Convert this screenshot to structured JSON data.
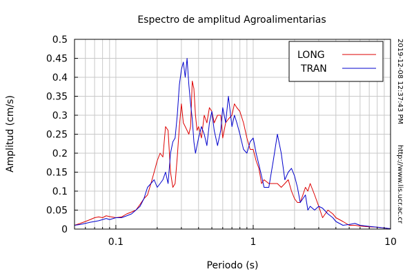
{
  "chart_data": {
    "type": "line",
    "title": "Espectro de amplitud Agroalimentarias",
    "xlabel": "Periodo (s)",
    "ylabel": "Amplitud (cm/s)",
    "x_scale": "log",
    "xlim": [
      0.05,
      10
    ],
    "ylim": [
      0,
      0.5
    ],
    "x_tick_labels": [
      {
        "value": 0.1,
        "label": "0.1"
      },
      {
        "value": 1,
        "label": "1"
      },
      {
        "value": 10,
        "label": "10"
      }
    ],
    "y_tick_labels": [
      "0",
      "0.05",
      "0.1",
      "0.15",
      "0.2",
      "0.25",
      "0.3",
      "0.35",
      "0.4",
      "0.45",
      "0.5"
    ],
    "y_ticks": [
      0,
      0.05,
      0.1,
      0.15,
      0.2,
      0.25,
      0.3,
      0.35,
      0.4,
      0.45,
      0.5
    ],
    "grid": true,
    "legend_position": "top-right",
    "series": [
      {
        "name": "LONG",
        "color": "#dd0000",
        "x": [
          0.05,
          0.055,
          0.06,
          0.065,
          0.07,
          0.075,
          0.08,
          0.085,
          0.09,
          0.1,
          0.11,
          0.12,
          0.13,
          0.14,
          0.15,
          0.16,
          0.17,
          0.18,
          0.19,
          0.2,
          0.21,
          0.22,
          0.23,
          0.24,
          0.25,
          0.26,
          0.27,
          0.28,
          0.29,
          0.3,
          0.31,
          0.32,
          0.33,
          0.34,
          0.35,
          0.36,
          0.37,
          0.38,
          0.39,
          0.4,
          0.42,
          0.44,
          0.46,
          0.48,
          0.5,
          0.52,
          0.55,
          0.58,
          0.6,
          0.63,
          0.66,
          0.7,
          0.73,
          0.76,
          0.8,
          0.85,
          0.9,
          0.95,
          1.0,
          1.05,
          1.1,
          1.15,
          1.2,
          1.3,
          1.4,
          1.5,
          1.6,
          1.7,
          1.8,
          1.9,
          2.0,
          2.1,
          2.2,
          2.3,
          2.4,
          2.5,
          2.6,
          2.8,
          3.0,
          3.2,
          3.5,
          3.8,
          4.0,
          4.5,
          5.0,
          5.5,
          6.0,
          7.0,
          8.0,
          9.0,
          10.0
        ],
        "y": [
          0.01,
          0.015,
          0.02,
          0.025,
          0.03,
          0.032,
          0.03,
          0.035,
          0.033,
          0.03,
          0.032,
          0.04,
          0.045,
          0.05,
          0.065,
          0.08,
          0.09,
          0.12,
          0.15,
          0.18,
          0.2,
          0.19,
          0.27,
          0.26,
          0.15,
          0.11,
          0.12,
          0.19,
          0.27,
          0.33,
          0.28,
          0.27,
          0.26,
          0.25,
          0.27,
          0.39,
          0.37,
          0.3,
          0.26,
          0.27,
          0.24,
          0.3,
          0.28,
          0.32,
          0.31,
          0.28,
          0.3,
          0.3,
          0.24,
          0.28,
          0.29,
          0.3,
          0.33,
          0.32,
          0.31,
          0.28,
          0.24,
          0.21,
          0.21,
          0.18,
          0.16,
          0.12,
          0.13,
          0.12,
          0.12,
          0.12,
          0.11,
          0.12,
          0.13,
          0.1,
          0.08,
          0.07,
          0.07,
          0.09,
          0.11,
          0.1,
          0.12,
          0.09,
          0.06,
          0.03,
          0.05,
          0.04,
          0.03,
          0.02,
          0.01,
          0.01,
          0.008,
          0.006,
          0.005,
          0.003,
          0.001
        ]
      },
      {
        "name": "TRAN",
        "color": "#0000cc",
        "x": [
          0.05,
          0.055,
          0.06,
          0.065,
          0.07,
          0.075,
          0.08,
          0.085,
          0.09,
          0.1,
          0.11,
          0.12,
          0.13,
          0.14,
          0.15,
          0.16,
          0.17,
          0.18,
          0.19,
          0.2,
          0.21,
          0.22,
          0.23,
          0.24,
          0.25,
          0.26,
          0.27,
          0.28,
          0.29,
          0.3,
          0.31,
          0.32,
          0.33,
          0.34,
          0.35,
          0.36,
          0.37,
          0.38,
          0.39,
          0.4,
          0.42,
          0.44,
          0.46,
          0.48,
          0.5,
          0.52,
          0.55,
          0.58,
          0.6,
          0.63,
          0.66,
          0.7,
          0.73,
          0.76,
          0.8,
          0.85,
          0.9,
          0.95,
          1.0,
          1.05,
          1.1,
          1.15,
          1.2,
          1.3,
          1.4,
          1.5,
          1.6,
          1.7,
          1.8,
          1.9,
          2.0,
          2.1,
          2.2,
          2.3,
          2.4,
          2.5,
          2.6,
          2.8,
          3.0,
          3.2,
          3.5,
          3.8,
          4.0,
          4.5,
          5.0,
          5.5,
          6.0,
          7.0,
          8.0,
          9.0,
          10.0
        ],
        "y": [
          0.01,
          0.012,
          0.015,
          0.018,
          0.02,
          0.022,
          0.025,
          0.028,
          0.025,
          0.03,
          0.03,
          0.035,
          0.04,
          0.05,
          0.06,
          0.08,
          0.11,
          0.12,
          0.13,
          0.11,
          0.12,
          0.13,
          0.15,
          0.12,
          0.2,
          0.23,
          0.24,
          0.3,
          0.38,
          0.42,
          0.44,
          0.4,
          0.45,
          0.38,
          0.33,
          0.29,
          0.23,
          0.2,
          0.22,
          0.24,
          0.27,
          0.25,
          0.22,
          0.28,
          0.31,
          0.26,
          0.22,
          0.26,
          0.32,
          0.28,
          0.35,
          0.27,
          0.3,
          0.28,
          0.25,
          0.21,
          0.2,
          0.23,
          0.24,
          0.2,
          0.17,
          0.14,
          0.11,
          0.11,
          0.18,
          0.25,
          0.2,
          0.13,
          0.15,
          0.16,
          0.14,
          0.11,
          0.07,
          0.08,
          0.09,
          0.05,
          0.06,
          0.05,
          0.06,
          0.055,
          0.04,
          0.03,
          0.02,
          0.01,
          0.012,
          0.015,
          0.01,
          0.007,
          0.005,
          0.003,
          0.001
        ]
      }
    ]
  },
  "side_note": {
    "timestamp": "2019-12-08 12:37:43 PM",
    "url": "http://www.lis.ucr.ac.cr"
  }
}
